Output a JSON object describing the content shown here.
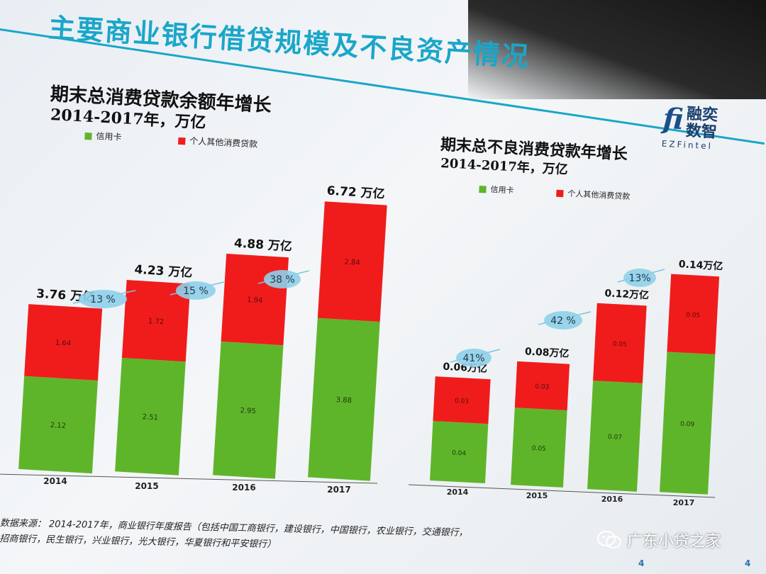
{
  "slide": {
    "title": "主要商业银行借贷规模及不良资产情况",
    "logo_text": "融奕数智",
    "logo_sub": "EZFintel",
    "logo_mark": "fi",
    "source_line1": "数据来源：  2014-2017年，商业银行年度报告（包括中国工商银行，建设银行，中国银行，农业银行，交通银行，",
    "source_line2": "招商银行，民生银行，兴业银行，光大银行，华夏银行和平安银行）",
    "watermark": "广东小贷之家",
    "page_number_left": "4",
    "page_number_right": "4"
  },
  "colors": {
    "green": "#5fb52a",
    "red": "#f01c1c",
    "bubble": "#8fd0ea",
    "title": "#1aa6c9"
  },
  "chart_data": [
    {
      "type": "bar",
      "stacked": true,
      "title": "期末总消费贷款余额年增长",
      "subtitle": "2014-2017年，万亿",
      "categories": [
        "2014",
        "2015",
        "2016",
        "2017"
      ],
      "series": [
        {
          "name": "信用卡",
          "color": "#5fb52a",
          "values": [
            2.12,
            2.51,
            2.95,
            3.88
          ],
          "labels": [
            "2.12",
            "2.51",
            "2.95",
            "3.88"
          ]
        },
        {
          "name": "个人其他消费贷款",
          "color": "#f01c1c",
          "values": [
            1.64,
            1.72,
            1.94,
            2.84
          ],
          "labels": [
            "1.64",
            "1.72",
            "1.94",
            "2.84"
          ]
        }
      ],
      "totals": [
        "3.76 万亿",
        "4.23 万亿",
        "4.88 万亿",
        "6.72 万亿"
      ],
      "growth": [
        "13 %",
        "15 %",
        "38 %"
      ],
      "ylim": [
        0,
        7
      ],
      "legend": "top-left"
    },
    {
      "type": "bar",
      "stacked": true,
      "title": "期末总不良消费贷款年增长",
      "subtitle": "2014-2017年，万亿",
      "categories": [
        "2014",
        "2015",
        "2016",
        "2017"
      ],
      "series": [
        {
          "name": "信用卡",
          "color": "#5fb52a",
          "values": [
            0.04,
            0.05,
            0.07,
            0.09
          ],
          "labels": [
            "0.04",
            "0.05",
            "0.07",
            "0.09"
          ]
        },
        {
          "name": "个人其他消费贷款",
          "color": "#f01c1c",
          "values": [
            0.03,
            0.03,
            0.05,
            0.05
          ],
          "labels": [
            "0.03",
            "0.03",
            "0.05",
            "0.05"
          ]
        }
      ],
      "totals": [
        "0.06万亿",
        "0.08万亿",
        "0.12万亿",
        "0.14万亿"
      ],
      "growth": [
        "41%",
        "42 %",
        "13%"
      ],
      "ylim": [
        0,
        0.14
      ],
      "legend": "top-left"
    }
  ]
}
